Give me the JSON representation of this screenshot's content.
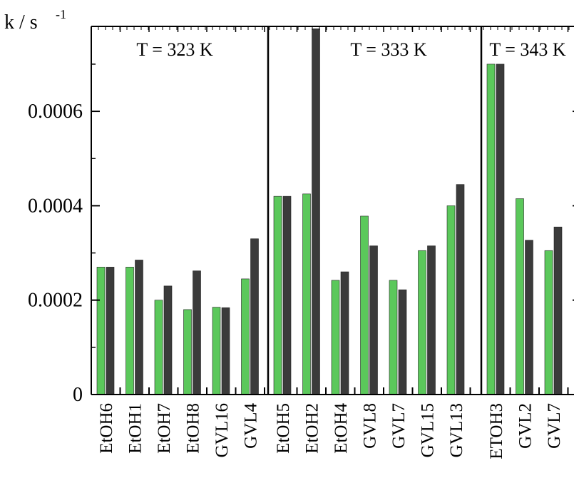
{
  "chart_data": {
    "type": "bar",
    "ylabel": "k / s",
    "ylabel_sup": "-1",
    "ylim": [
      0,
      0.00078
    ],
    "yticks": [
      0,
      0.0002,
      0.0004,
      0.0006
    ],
    "ytick_labels": [
      "0",
      "0.0002",
      "0.0004",
      "0.0006"
    ],
    "colors": {
      "green": "#5bc85b",
      "dark": "#3b3b3b"
    },
    "panels": [
      {
        "title": "T = 323 K",
        "categories": [
          "EtOH6",
          "EtOH1",
          "EtOH7",
          "EtOH8",
          "GVL16",
          "GVL4"
        ],
        "series": [
          {
            "values": [
              0.00027,
              0.00027,
              0.0002,
              0.00018,
              0.000185,
              0.000245
            ]
          },
          {
            "values": [
              0.00027,
              0.000285,
              0.00023,
              0.000262,
              0.000184,
              0.00033
            ]
          }
        ]
      },
      {
        "title": "T = 333 K",
        "categories": [
          "EtOH5",
          "EtOH2",
          "EtOH4",
          "GVL8",
          "GVL7",
          "GVL15",
          "GVL13"
        ],
        "series": [
          {
            "values": [
              0.00042,
              0.000425,
              0.000242,
              0.000378,
              0.000242,
              0.000305,
              0.0004
            ]
          },
          {
            "values": [
              0.00042,
              0.000775,
              0.00026,
              0.000315,
              0.000222,
              0.000315,
              0.000445
            ]
          }
        ]
      },
      {
        "title": "T = 343 K",
        "categories": [
          "ETOH3",
          "GVL2",
          "GVL7"
        ],
        "series": [
          {
            "values": [
              0.0007,
              0.000415,
              0.000305
            ]
          },
          {
            "values": [
              0.0007,
              0.000327,
              0.000355
            ]
          }
        ]
      }
    ]
  }
}
